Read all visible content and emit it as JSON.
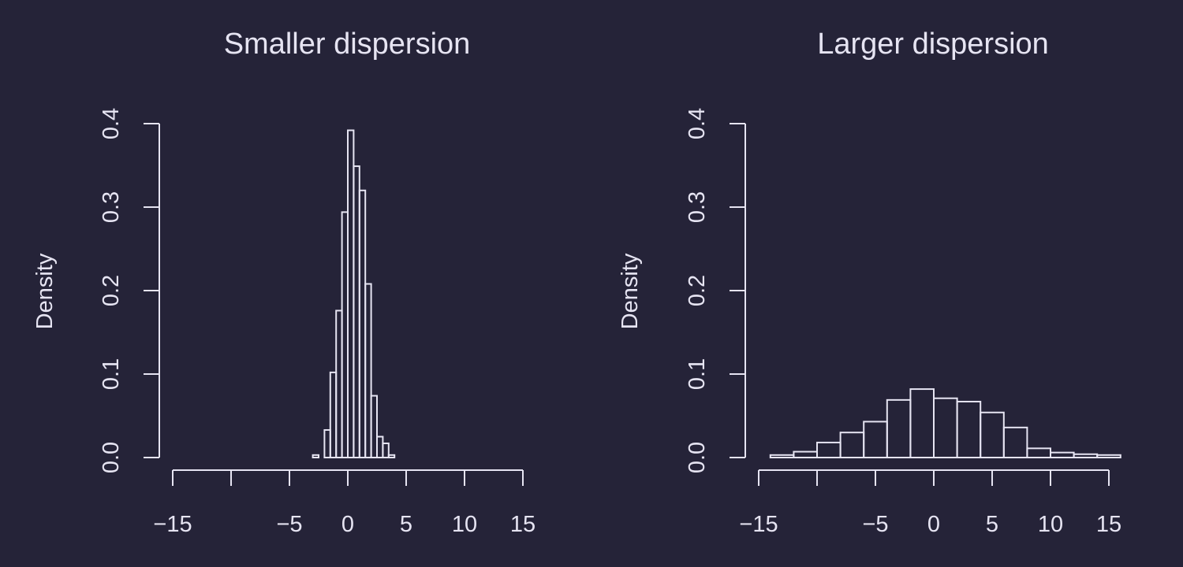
{
  "colors": {
    "background": "#252338",
    "foreground": "#e6e4f2"
  },
  "chart_data": [
    {
      "type": "histogram",
      "title": "Smaller dispersion",
      "xlabel": "",
      "ylabel": "Density",
      "xlim": [
        -16,
        16
      ],
      "ylim": [
        0,
        0.4
      ],
      "xticks": [
        -15,
        -10,
        -5,
        0,
        5,
        10,
        15
      ],
      "xtick_labels": [
        "−15",
        "",
        "−5",
        "0",
        "5",
        "10",
        "15"
      ],
      "yticks": [
        0.0,
        0.1,
        0.2,
        0.3,
        0.4
      ],
      "ytick_labels": [
        "0.0",
        "0.1",
        "0.2",
        "0.3",
        "0.4"
      ],
      "grid": false,
      "legend": "none",
      "bin_width": 0.5,
      "bin_edges_start": -3.0,
      "density": [
        0.003,
        0.0,
        0.033,
        0.102,
        0.176,
        0.294,
        0.392,
        0.349,
        0.32,
        0.208,
        0.074,
        0.025,
        0.017,
        0.003
      ]
    },
    {
      "type": "histogram",
      "title": "Larger dispersion",
      "xlabel": "",
      "ylabel": "Density",
      "xlim": [
        -16,
        16
      ],
      "ylim": [
        0,
        0.4
      ],
      "xticks": [
        -15,
        -10,
        -5,
        0,
        5,
        10,
        15
      ],
      "xtick_labels": [
        "−15",
        "",
        "−5",
        "0",
        "5",
        "10",
        "15"
      ],
      "yticks": [
        0.0,
        0.1,
        0.2,
        0.3,
        0.4
      ],
      "ytick_labels": [
        "0.0",
        "0.1",
        "0.2",
        "0.3",
        "0.4"
      ],
      "grid": false,
      "legend": "none",
      "bin_width": 2,
      "bin_edges_start": -14,
      "density": [
        0.003,
        0.007,
        0.018,
        0.03,
        0.043,
        0.069,
        0.082,
        0.071,
        0.067,
        0.054,
        0.036,
        0.011,
        0.006,
        0.004,
        0.003
      ]
    }
  ]
}
